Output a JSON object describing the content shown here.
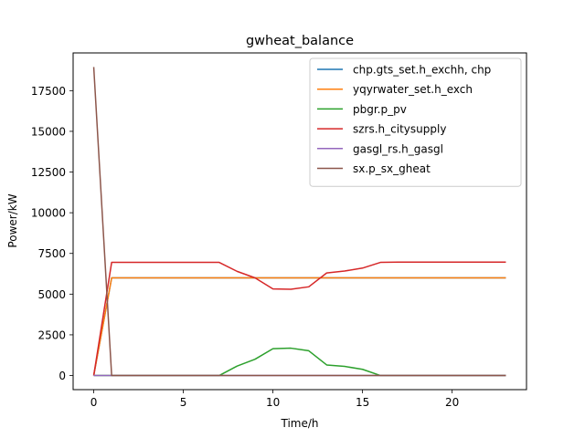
{
  "chart_data": {
    "type": "line",
    "title": "gwheat_balance",
    "xlabel": "Time/h",
    "ylabel": "Power/kW",
    "xlim": [
      -1.15,
      24.15
    ],
    "ylim": [
      -867,
      19817
    ],
    "xticks": [
      0,
      5,
      10,
      15,
      20
    ],
    "yticks": [
      0,
      2500,
      5000,
      7500,
      10000,
      12500,
      15000,
      17500
    ],
    "grid": false,
    "legend_position": "top-right",
    "x": [
      0,
      1,
      2,
      3,
      4,
      5,
      6,
      7,
      8,
      9,
      10,
      11,
      12,
      13,
      14,
      15,
      16,
      17,
      18,
      19,
      20,
      21,
      22,
      23
    ],
    "series": [
      {
        "name": "chp.gts_set.h_exchh, chp",
        "color": "#1f77b4",
        "values": [
          0,
          6000,
          6000,
          6000,
          6000,
          6000,
          6000,
          6000,
          6000,
          6000,
          6000,
          6000,
          6000,
          6000,
          6000,
          6000,
          6000,
          6000,
          6000,
          6000,
          6000,
          6000,
          6000,
          6000
        ]
      },
      {
        "name": "yqyrwater_set.h_exch",
        "color": "#ff7f0e",
        "values": [
          0,
          6000,
          6000,
          6000,
          6000,
          6000,
          6000,
          6000,
          6000,
          6000,
          6000,
          6000,
          6000,
          6000,
          6000,
          6000,
          6000,
          6000,
          6000,
          6000,
          6000,
          6000,
          6000,
          6000
        ]
      },
      {
        "name": "pbgr.p_pv",
        "color": "#2ca02c",
        "values": [
          0,
          0,
          0,
          0,
          0,
          0,
          0,
          0,
          580,
          1000,
          1650,
          1680,
          1520,
          650,
          560,
          380,
          0,
          0,
          0,
          0,
          0,
          0,
          0,
          0
        ]
      },
      {
        "name": "szrs.h_citysupply",
        "color": "#d62728",
        "values": [
          0,
          6950,
          6950,
          6950,
          6950,
          6950,
          6950,
          6950,
          6400,
          6000,
          5320,
          5300,
          5450,
          6300,
          6420,
          6600,
          6950,
          6970,
          6970,
          6970,
          6970,
          6970,
          6970,
          6970
        ]
      },
      {
        "name": "gasgl_rs.h_gasgl",
        "color": "#9467bd",
        "values": [
          0,
          0,
          0,
          0,
          0,
          0,
          0,
          0,
          0,
          0,
          0,
          0,
          0,
          0,
          0,
          0,
          0,
          0,
          0,
          0,
          0,
          0,
          0,
          0
        ]
      },
      {
        "name": "sx.p_sx_gheat",
        "color": "#8c564b",
        "values": [
          18950,
          0,
          0,
          0,
          0,
          0,
          0,
          0,
          0,
          0,
          0,
          0,
          0,
          0,
          0,
          0,
          0,
          0,
          0,
          0,
          0,
          0,
          0,
          0
        ]
      }
    ]
  }
}
